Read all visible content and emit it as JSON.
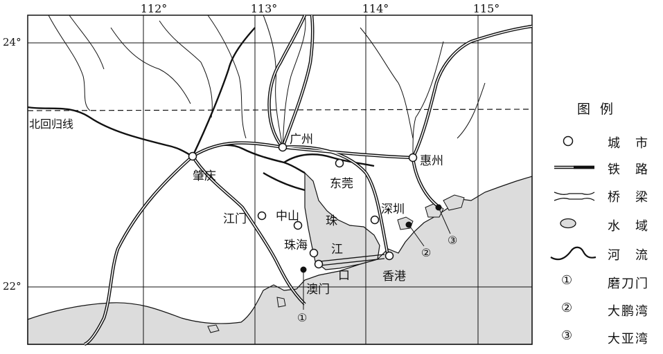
{
  "map": {
    "longitudes": [
      "112°",
      "113°",
      "114°",
      "115°"
    ],
    "latitudes": [
      "24°",
      "22°"
    ],
    "tropic_label": "北回归线",
    "cities": {
      "guangzhou": "广州",
      "huizhou": "惠州",
      "zhaoqing": "肇庆",
      "dongguan": "东莞",
      "shenzhen": "深圳",
      "jiangmen": "江门",
      "zhongshan": "中山",
      "zhuhai": "珠海",
      "aomen": "澳门",
      "xianggang": "香港"
    },
    "estuary_chars": [
      "珠",
      "江",
      "口"
    ],
    "callouts": [
      "①",
      "②",
      "③"
    ],
    "colors": {
      "sea": "#dcdcdc",
      "ink": "#111111"
    }
  },
  "legend": {
    "title": "图例",
    "items": [
      {
        "symbol": "city-icon",
        "label": "城市"
      },
      {
        "symbol": "railway-icon",
        "label": "铁路"
      },
      {
        "symbol": "bridge-icon",
        "label": "桥梁"
      },
      {
        "symbol": "water-icon",
        "label": "水域"
      },
      {
        "symbol": "river-icon",
        "label": "河流"
      },
      {
        "symbol": "①",
        "label": "磨刀门"
      },
      {
        "symbol": "②",
        "label": "大鹏湾"
      },
      {
        "symbol": "③",
        "label": "大亚湾"
      }
    ]
  }
}
